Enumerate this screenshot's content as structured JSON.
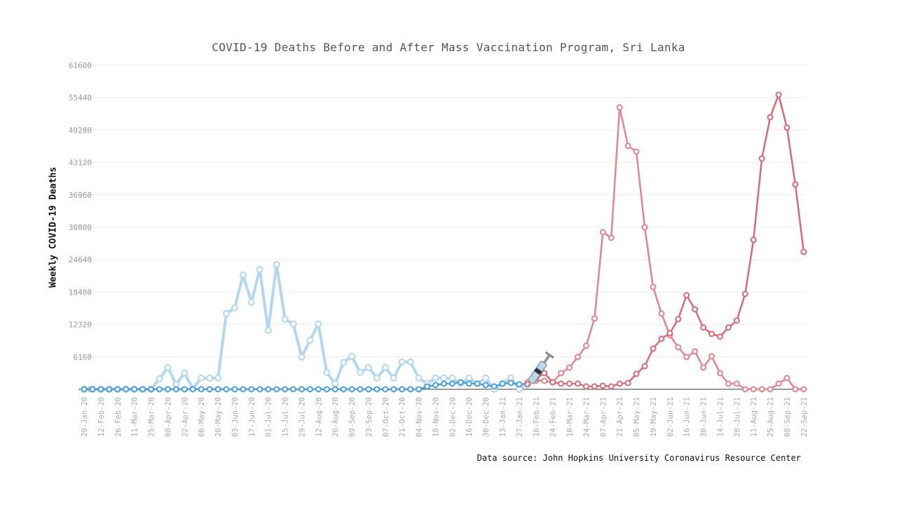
{
  "chart_data": {
    "type": "line",
    "title": "COVID-19 Deaths Before and After Mass Vaccination Program, Sri Lanka",
    "ylabel": "Weekly COVID-19 Deaths",
    "xlabel": "",
    "source": "Data source: John Hopkins University Coronavirus Resource Center",
    "ylim": [
      0,
      61600
    ],
    "yticks": [
      0,
      6160,
      12320,
      18480,
      24640,
      30800,
      36960,
      43120,
      49280,
      55440,
      61600
    ],
    "grid": true,
    "x_start": "29-Jan-20",
    "x_step_days": 7,
    "xtick_labels": [
      "29-Jan-20",
      "12-Feb-20",
      "26-Feb-20",
      "11-Mar-20",
      "25-Mar-20",
      "08-Apr-20",
      "22-Apr-20",
      "06-May-20",
      "20-May-20",
      "03-Jun-20",
      "17-Jun-20",
      "01-Jul-20",
      "15-Jul-20",
      "29-Jul-20",
      "12-Aug-20",
      "26-Aug-20",
      "09-Sep-20",
      "23-Sep-20",
      "07-Oct-20",
      "21-Oct-20",
      "04-Nov-20",
      "18-Nov-20",
      "02-Dec-20",
      "16-Dec-20",
      "30-Dec-20",
      "13-Jan-21",
      "27-Jan-21",
      "10-Feb-21",
      "24-Feb-21",
      "10-Mar-21",
      "24-Mar-21",
      "07-Apr-21",
      "21-Apr-21",
      "05-May-21",
      "19-May-21",
      "02-Jun-21",
      "16-Jun-21",
      "30-Jun-21",
      "14-Jul-21",
      "28-Jul-21",
      "11-Aug-21",
      "25-Aug-21",
      "08-Sep-21",
      "22-Sep-21"
    ],
    "series": [
      {
        "color": "#b3d7ee",
        "start_week": 0,
        "values": [
          0,
          0,
          0,
          0,
          0,
          0,
          0,
          0,
          0,
          2000,
          4130,
          930,
          3070,
          130,
          2130,
          2130,
          2130,
          14400,
          15470,
          21730,
          16530,
          22800,
          11200,
          23730,
          13330,
          12400,
          6130,
          9330,
          12400,
          3200,
          1070,
          5070,
          6270,
          3200,
          4130,
          2130,
          4130,
          2130,
          5200,
          5200,
          2130,
          1070,
          2130,
          2130,
          2130,
          1070,
          2130,
          1070,
          2130,
          0,
          1070,
          2130,
          0,
          1070
        ]
      },
      {
        "color": "#4a9fd8",
        "start_week": 0,
        "values": [
          0,
          0,
          0,
          0,
          0,
          0,
          0,
          0,
          0,
          0,
          0,
          0,
          0,
          0,
          0,
          0,
          0,
          0,
          0,
          0,
          0,
          0,
          0,
          0,
          0,
          0,
          0,
          0,
          0,
          0,
          0,
          0,
          0,
          0,
          0,
          0,
          0,
          0,
          0,
          0,
          0,
          530,
          800,
          1070,
          1070,
          1330,
          1070,
          1070,
          800,
          530,
          1070,
          1200,
          930,
          1070
        ]
      },
      {
        "color": "#e3848f",
        "start_week": 53,
        "values": [
          1330,
          1600,
          1600,
          1330,
          3070,
          4130,
          6130,
          8270,
          13470,
          29860,
          28790,
          53590,
          46260,
          45190,
          30790,
          19460,
          14400,
          10270,
          8000,
          6130,
          7200,
          4130,
          6270,
          3070,
          1070,
          1070,
          0,
          0,
          0,
          0,
          1070,
          2130,
          0,
          0
        ]
      },
      {
        "color": "#d96a7a",
        "start_week": 53,
        "values": [
          930,
          2000,
          3070,
          1330,
          1070,
          1070,
          1070,
          530,
          530,
          670,
          530,
          1070,
          1200,
          2930,
          4400,
          7730,
          9600,
          10670,
          13330,
          17860,
          15200,
          11730,
          10530,
          10000,
          11730,
          13070,
          18130,
          28390,
          43860,
          51720,
          55990,
          49730,
          38930,
          26130
        ]
      }
    ],
    "annotations": [
      {
        "icon": "syringe-icon",
        "at": "10-Feb-21",
        "meaning": "vaccination start"
      }
    ]
  }
}
